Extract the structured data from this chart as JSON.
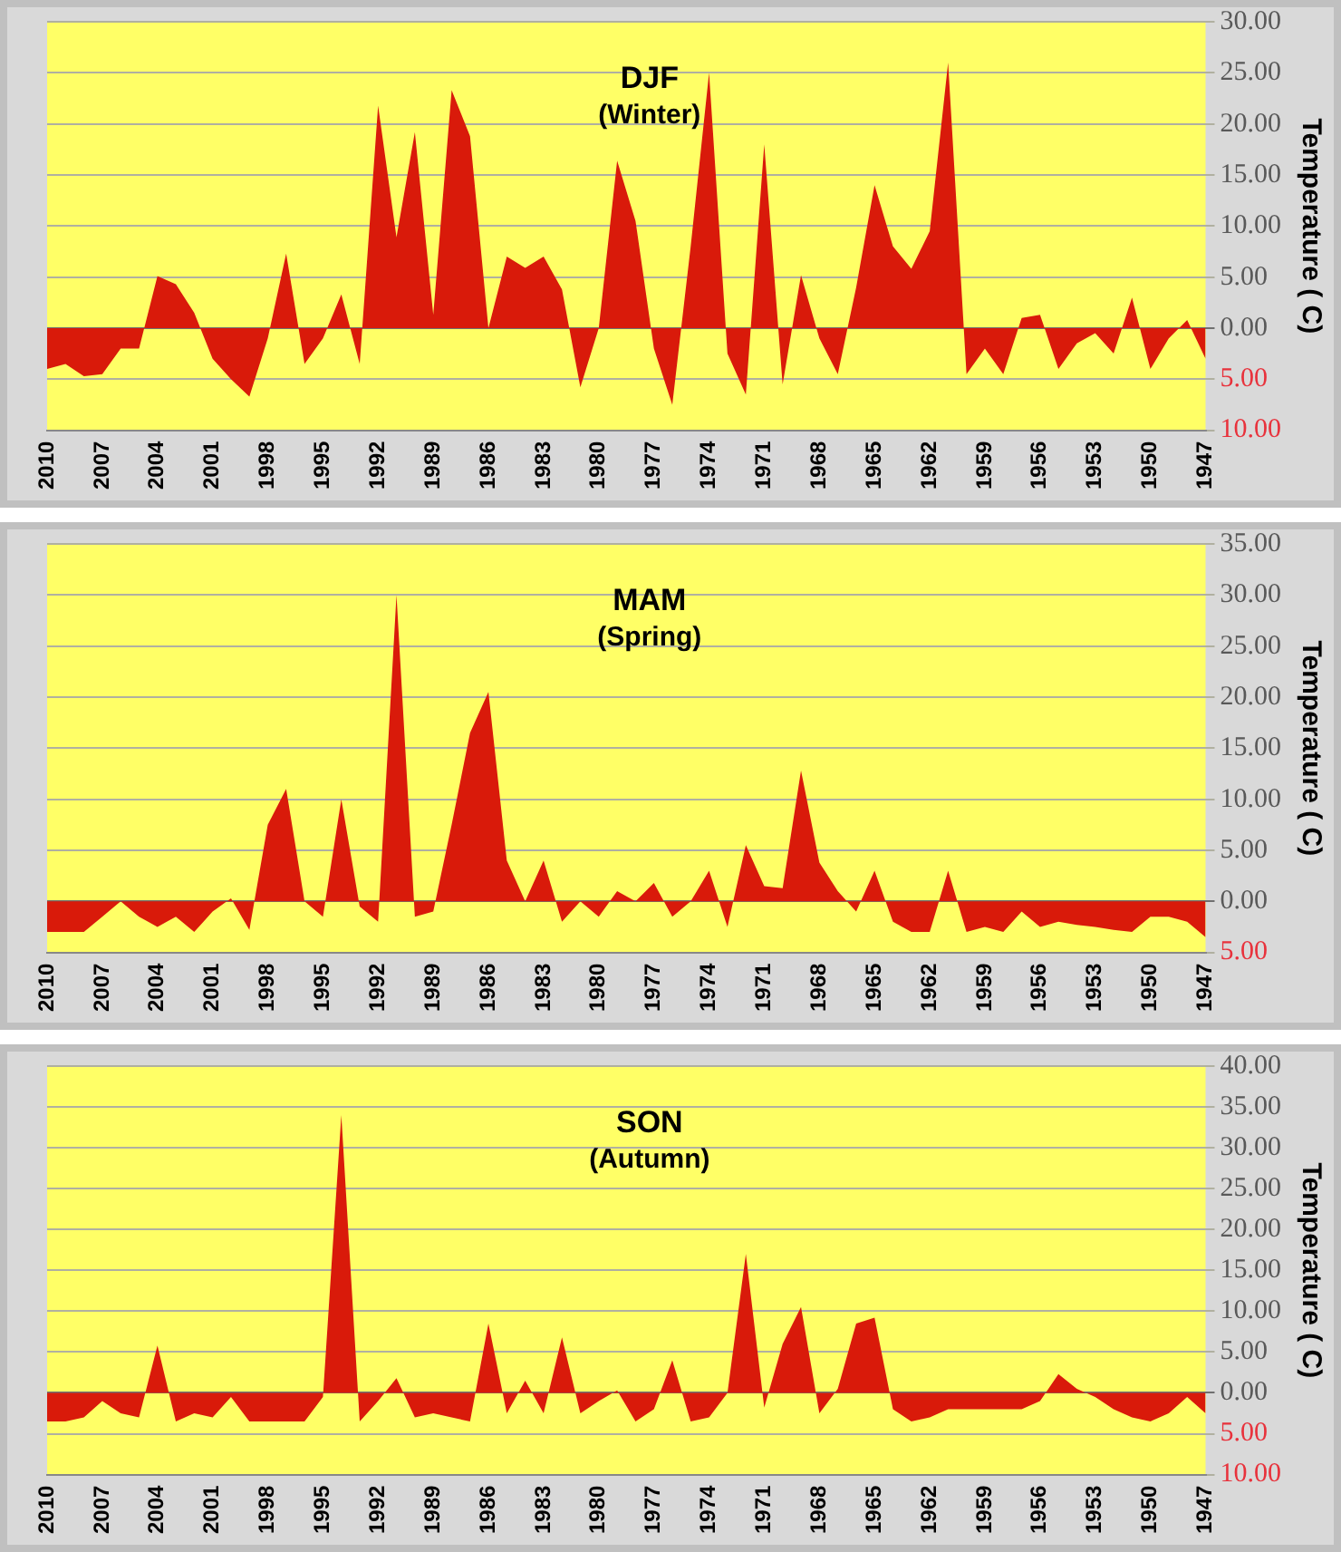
{
  "chart_data": [
    {
      "type": "area",
      "title": "DJF",
      "subtitle": "(Winter)",
      "ylabel": "Temperature ( C)",
      "color": "#d91a0a",
      "grid": "y",
      "legend": false,
      "categories": [
        "2010",
        null,
        null,
        "2007",
        null,
        null,
        "2004",
        null,
        null,
        "2001",
        null,
        null,
        "1998",
        null,
        null,
        "1995",
        null,
        null,
        "1992",
        null,
        null,
        "1989",
        null,
        null,
        "1986",
        null,
        null,
        "1983",
        null,
        null,
        "1980",
        null,
        null,
        "1977",
        null,
        null,
        "1974",
        null,
        null,
        "1971",
        null,
        null,
        "1968",
        null,
        null,
        "1965",
        null,
        null,
        "1962",
        null,
        null,
        "1959",
        null,
        null,
        "1956",
        null,
        null,
        "1953",
        null,
        null,
        "1950",
        null,
        null,
        "1947"
      ],
      "values": [
        -4.0,
        -3.5,
        -4.7,
        -4.5,
        -2.0,
        -2.0,
        5.1,
        4.3,
        1.5,
        -3.0,
        -5.0,
        -6.7,
        -1.0,
        7.3,
        -3.5,
        -1.0,
        3.3,
        -3.5,
        21.8,
        8.9,
        19.2,
        1.3,
        23.3,
        18.8,
        0.0,
        7.0,
        5.9,
        7.0,
        3.8,
        -5.8,
        0.0,
        16.4,
        10.5,
        -2.0,
        -7.5,
        8.0,
        25.0,
        -2.5,
        -6.5,
        18.0,
        -5.5,
        5.2,
        -1.0,
        -4.5,
        4.0,
        14.0,
        8.0,
        5.8,
        9.5,
        26.0,
        -4.5,
        -2.0,
        -4.5,
        1.0,
        1.3,
        -4.0,
        -1.5,
        -0.5,
        -2.5,
        3.0,
        -4.0,
        -1.0,
        0.8,
        -3.0
      ],
      "ylim": [
        -10,
        30
      ],
      "yticks": [
        {
          "value": -10,
          "label": "10.00"
        },
        {
          "value": -5,
          "label": "5.00"
        },
        {
          "value": 0,
          "label": "0.00"
        },
        {
          "value": 5,
          "label": "5.00"
        },
        {
          "value": 10,
          "label": "10.00"
        },
        {
          "value": 15,
          "label": "15.00"
        },
        {
          "value": 20,
          "label": "20.00"
        },
        {
          "value": 25,
          "label": "25.00"
        },
        {
          "value": 30,
          "label": "30.00"
        }
      ]
    },
    {
      "type": "area",
      "title": "MAM",
      "subtitle": "(Spring)",
      "ylabel": "Temperature ( C)",
      "color": "#d91a0a",
      "grid": "y",
      "legend": false,
      "categories": [
        "2010",
        null,
        null,
        "2007",
        null,
        null,
        "2004",
        null,
        null,
        "2001",
        null,
        null,
        "1998",
        null,
        null,
        "1995",
        null,
        null,
        "1992",
        null,
        null,
        "1989",
        null,
        null,
        "1986",
        null,
        null,
        "1983",
        null,
        null,
        "1980",
        null,
        null,
        "1977",
        null,
        null,
        "1974",
        null,
        null,
        "1971",
        null,
        null,
        "1968",
        null,
        null,
        "1965",
        null,
        null,
        "1962",
        null,
        null,
        "1959",
        null,
        null,
        "1956",
        null,
        null,
        "1953",
        null,
        null,
        "1950",
        null,
        null,
        "1947"
      ],
      "values": [
        -3.0,
        -3.0,
        -3.0,
        -1.5,
        0.0,
        -1.5,
        -2.5,
        -1.5,
        -3.0,
        -1.0,
        0.3,
        -2.8,
        7.5,
        11.0,
        0.0,
        -1.5,
        10.0,
        -0.5,
        -2.0,
        30.0,
        -1.5,
        -1.0,
        7.5,
        16.5,
        20.5,
        4.0,
        0.0,
        4.0,
        -2.0,
        0.0,
        -1.5,
        1.0,
        0.0,
        1.8,
        -1.5,
        0.0,
        3.0,
        -2.5,
        5.5,
        1.5,
        1.3,
        12.8,
        3.8,
        1.0,
        -1.0,
        3.0,
        -2.0,
        -3.0,
        -3.0,
        3.0,
        -3.0,
        -2.5,
        -3.0,
        -1.0,
        -2.5,
        -2.0,
        -2.3,
        -2.5,
        -2.8,
        -3.0,
        -1.5,
        -1.5,
        -2.0,
        -3.5
      ],
      "ylim": [
        -5,
        35
      ],
      "yticks": [
        {
          "value": -5,
          "label": "5.00"
        },
        {
          "value": 0,
          "label": "0.00"
        },
        {
          "value": 5,
          "label": "5.00"
        },
        {
          "value": 10,
          "label": "10.00"
        },
        {
          "value": 15,
          "label": "15.00"
        },
        {
          "value": 20,
          "label": "20.00"
        },
        {
          "value": 25,
          "label": "25.00"
        },
        {
          "value": 30,
          "label": "30.00"
        },
        {
          "value": 35,
          "label": "35.00"
        }
      ]
    },
    {
      "type": "area",
      "title": "SON",
      "subtitle": "(Autumn)",
      "ylabel": "Temperature ( C)",
      "color": "#d91a0a",
      "grid": "y",
      "legend": false,
      "categories": [
        "2010",
        null,
        null,
        "2007",
        null,
        null,
        "2004",
        null,
        null,
        "2001",
        null,
        null,
        "1998",
        null,
        null,
        "1995",
        null,
        null,
        "1992",
        null,
        null,
        "1989",
        null,
        null,
        "1986",
        null,
        null,
        "1983",
        null,
        null,
        "1980",
        null,
        null,
        "1977",
        null,
        null,
        "1974",
        null,
        null,
        "1971",
        null,
        null,
        "1968",
        null,
        null,
        "1965",
        null,
        null,
        "1962",
        null,
        null,
        "1959",
        null,
        null,
        "1956",
        null,
        null,
        "1953",
        null,
        null,
        "1950",
        null,
        null,
        "1947"
      ],
      "values": [
        -3.5,
        -3.5,
        -3.0,
        -1.0,
        -2.5,
        -3.0,
        5.8,
        -3.5,
        -2.5,
        -3.0,
        -0.5,
        -3.5,
        -3.5,
        -3.5,
        -3.5,
        -0.5,
        34.0,
        -3.5,
        -1.0,
        1.8,
        -3.0,
        -2.5,
        -3.0,
        -3.5,
        8.5,
        -2.5,
        1.5,
        -2.5,
        6.8,
        -2.5,
        -1.0,
        0.3,
        -3.5,
        -2.0,
        4.0,
        -3.5,
        -3.0,
        0.0,
        17.0,
        -1.8,
        6.0,
        10.5,
        -2.5,
        0.5,
        8.5,
        9.2,
        -2.0,
        -3.5,
        -3.0,
        -2.0,
        -2.0,
        -2.0,
        -2.0,
        -2.0,
        -1.0,
        2.3,
        0.5,
        -0.5,
        -2.0,
        -3.0,
        -3.5,
        -2.5,
        -0.5,
        -2.5
      ],
      "ylim": [
        -10,
        40
      ],
      "yticks": [
        {
          "value": -10,
          "label": "10.00"
        },
        {
          "value": -5,
          "label": "5.00"
        },
        {
          "value": 0,
          "label": "0.00"
        },
        {
          "value": 5,
          "label": "5.00"
        },
        {
          "value": 10,
          "label": "10.00"
        },
        {
          "value": 15,
          "label": "15.00"
        },
        {
          "value": 20,
          "label": "20.00"
        },
        {
          "value": 25,
          "label": "25.00"
        },
        {
          "value": 30,
          "label": "30.00"
        },
        {
          "value": 35,
          "label": "35.00"
        },
        {
          "value": 40,
          "label": "40.00"
        }
      ]
    }
  ]
}
